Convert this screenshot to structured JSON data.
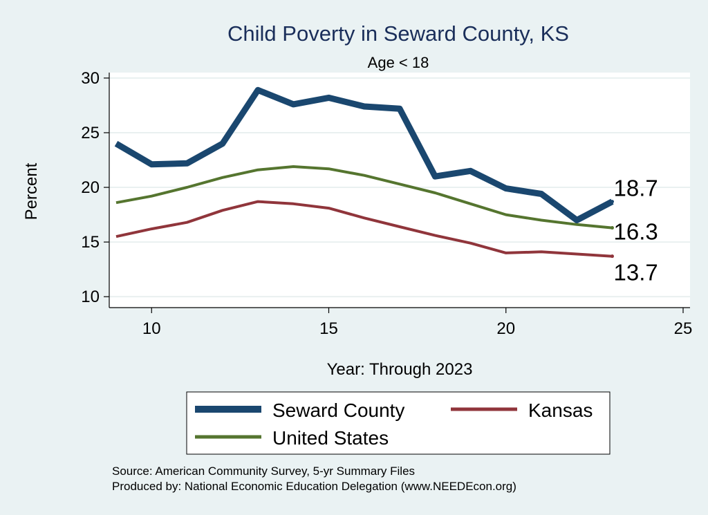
{
  "chart_data": {
    "type": "line",
    "title": "Child Poverty in Seward County, KS",
    "subtitle": "Age < 18",
    "xlabel": "Year: Through 2023",
    "ylabel": "Percent",
    "xlim": [
      9,
      25
    ],
    "ylim": [
      9,
      30.5
    ],
    "xticks": [
      10,
      15,
      20,
      25
    ],
    "yticks": [
      10,
      15,
      20,
      25,
      30
    ],
    "grid": true,
    "x": [
      9,
      10,
      11,
      12,
      13,
      14,
      15,
      16,
      17,
      18,
      19,
      20,
      21,
      22,
      23
    ],
    "series": [
      {
        "name": "Seward County",
        "color": "#1a476f",
        "values": [
          24.0,
          22.1,
          22.2,
          24.0,
          28.9,
          27.6,
          28.2,
          27.4,
          27.2,
          21.0,
          21.5,
          19.9,
          19.4,
          17.0,
          18.7
        ],
        "end_label": "18.7"
      },
      {
        "name": "United States",
        "color": "#55752f",
        "values": [
          18.6,
          19.2,
          20.0,
          20.9,
          21.6,
          21.9,
          21.7,
          21.1,
          20.3,
          19.5,
          18.5,
          17.5,
          17.0,
          16.6,
          16.3
        ],
        "end_label": "16.3"
      },
      {
        "name": "Kansas",
        "color": "#90353b",
        "values": [
          15.5,
          16.2,
          16.8,
          17.9,
          18.7,
          18.5,
          18.1,
          17.2,
          16.4,
          15.6,
          14.9,
          14.0,
          14.1,
          13.9,
          13.7
        ],
        "end_label": "13.7"
      }
    ],
    "legend": {
      "position": "bottom",
      "entries": [
        "Seward County",
        "Kansas",
        "United States"
      ]
    },
    "notes": [
      "Source: American Community Survey, 5-yr Summary Files",
      "Produced by: National Economic Education Delegation (www.NEEDEcon.org)"
    ]
  }
}
